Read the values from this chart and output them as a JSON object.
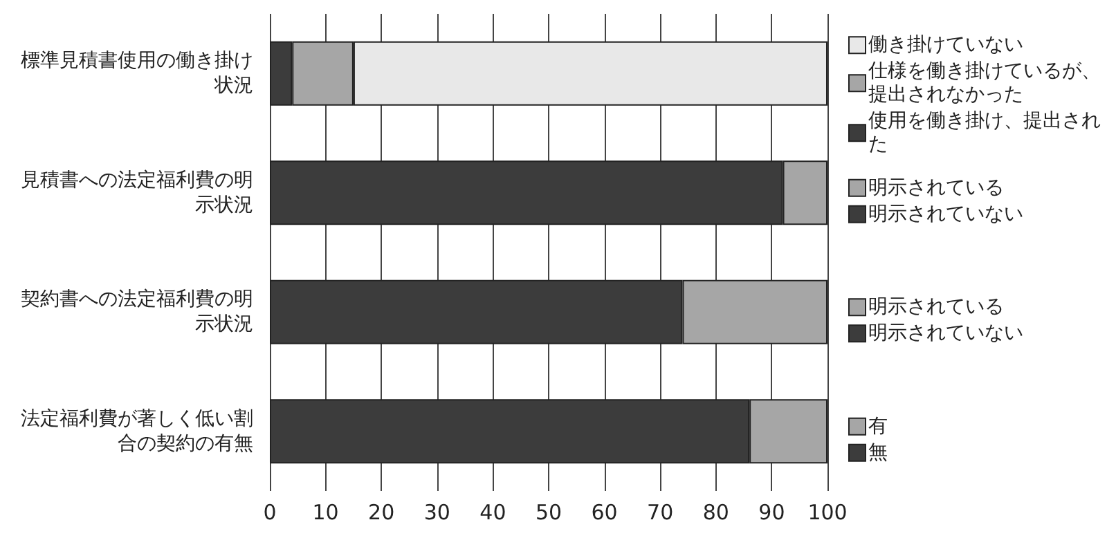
{
  "chart_data": {
    "type": "bar",
    "orientation": "horizontal",
    "stacked": true,
    "categories": [
      "標準見積書使用の働き掛け状況",
      "見積書への法定福利費の明示状況",
      "契約書への法定福利費の明示状況",
      "法定福利費が著しく低い割合の契約の有無"
    ],
    "series": [
      {
        "name": "使用を働き掛け、提出された",
        "color": "#3c3c3c",
        "values": [
          4,
          null,
          null,
          null
        ]
      },
      {
        "name": "仕様を働き掛けているが、提出されなかった",
        "color": "#a6a6a6",
        "values": [
          11,
          null,
          null,
          null
        ]
      },
      {
        "name": "働き掛けていない",
        "color": "#e8e8e8",
        "values": [
          85,
          null,
          null,
          null
        ]
      },
      {
        "name": "明示されていない",
        "color": "#3c3c3c",
        "values": [
          null,
          92,
          null,
          null
        ]
      },
      {
        "name": "明示されている",
        "color": "#a6a6a6",
        "values": [
          null,
          8,
          null,
          null
        ]
      },
      {
        "name": "明示されていない",
        "color": "#3c3c3c",
        "values": [
          null,
          null,
          74,
          null
        ]
      },
      {
        "name": "明示されている",
        "color": "#a6a6a6",
        "values": [
          null,
          null,
          26,
          null
        ]
      },
      {
        "name": "無",
        "color": "#3c3c3c",
        "values": [
          null,
          null,
          null,
          86
        ]
      },
      {
        "name": "有",
        "color": "#a6a6a6",
        "values": [
          null,
          null,
          null,
          14
        ]
      }
    ],
    "xlim": [
      0,
      100
    ],
    "xticks": [
      0,
      10,
      20,
      30,
      40,
      50,
      60,
      70,
      80,
      90,
      100
    ],
    "grid": "x",
    "legend": "right"
  }
}
